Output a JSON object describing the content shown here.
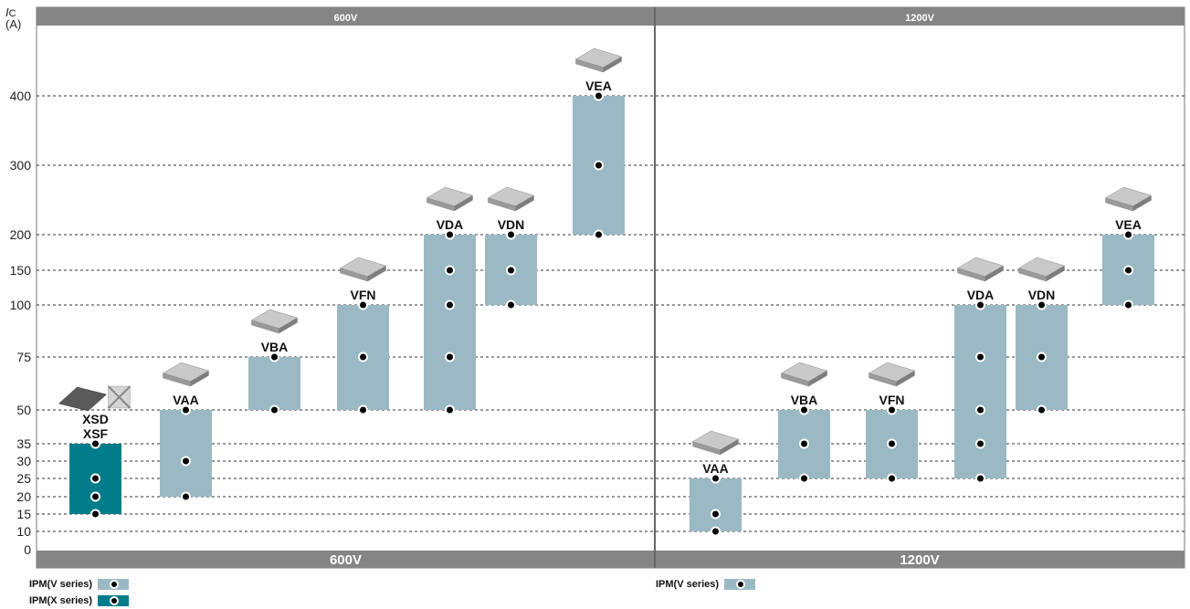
{
  "chart_data": {
    "type": "bar",
    "ylabel_symbol": "I",
    "ylabel_sub": "C",
    "ylabel_unit": "(A)",
    "y_ticks": [
      0,
      10,
      15,
      20,
      25,
      30,
      35,
      50,
      75,
      100,
      150,
      200,
      300,
      400
    ],
    "grid": true,
    "panels": [
      {
        "top_label": "600V",
        "bottom_label": "600V",
        "bars": [
          {
            "name": "XSD\nXSF",
            "series": "IPM(X series)",
            "low": 15,
            "high": 35,
            "points": [
              15,
              20,
              25,
              35
            ]
          },
          {
            "name": "VAA",
            "series": "IPM(V series)",
            "low": 20,
            "high": 50,
            "points": [
              20,
              30,
              50
            ]
          },
          {
            "name": "VBA",
            "series": "IPM(V series)",
            "low": 50,
            "high": 75,
            "points": [
              50,
              75
            ]
          },
          {
            "name": "VFN",
            "series": "IPM(V series)",
            "low": 50,
            "high": 100,
            "points": [
              50,
              75,
              100
            ]
          },
          {
            "name": "VDA",
            "series": "IPM(V series)",
            "low": 50,
            "high": 200,
            "points": [
              50,
              75,
              100,
              150,
              200
            ]
          },
          {
            "name": "VDN",
            "series": "IPM(V series)",
            "low": 100,
            "high": 200,
            "points": [
              100,
              150,
              200
            ]
          },
          {
            "name": "VEA",
            "series": "IPM(V series)",
            "low": 200,
            "high": 400,
            "points": [
              200,
              300,
              400
            ]
          }
        ]
      },
      {
        "top_label": "1200V",
        "bottom_label": "1200V",
        "bars": [
          {
            "name": "VAA",
            "series": "IPM(V series)",
            "low": 10,
            "high": 25,
            "points": [
              10,
              15,
              25
            ]
          },
          {
            "name": "VBA",
            "series": "IPM(V series)",
            "low": 25,
            "high": 50,
            "points": [
              25,
              35,
              50
            ]
          },
          {
            "name": "VFN",
            "series": "IPM(V series)",
            "low": 25,
            "high": 50,
            "points": [
              25,
              35,
              50
            ]
          },
          {
            "name": "VDA",
            "series": "IPM(V series)",
            "low": 25,
            "high": 100,
            "points": [
              25,
              35,
              50,
              75,
              100
            ]
          },
          {
            "name": "VDN",
            "series": "IPM(V series)",
            "low": 50,
            "high": 100,
            "points": [
              50,
              75,
              100
            ]
          },
          {
            "name": "VEA",
            "series": "IPM(V series)",
            "low": 100,
            "high": 200,
            "points": [
              100,
              150,
              200
            ]
          }
        ]
      }
    ],
    "legend": [
      {
        "label": "IPM(V series)",
        "series": "IPM(V series)"
      },
      {
        "label": "IPM(X series)",
        "series": "IPM(X series)"
      },
      {
        "label": "IPM(V series)",
        "series": "IPM(V series)"
      }
    ],
    "colors": {
      "IPM(V series)": "#9ab9c4",
      "IPM(X series)": "#017c8b",
      "section_band": "#858585"
    }
  }
}
